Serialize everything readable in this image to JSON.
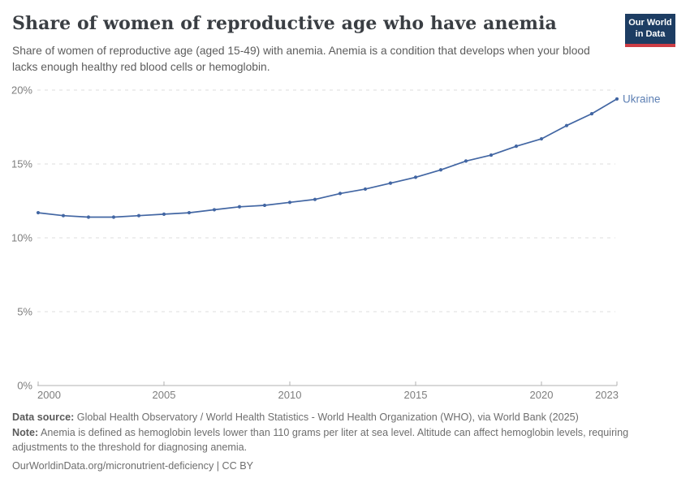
{
  "header": {
    "title": "Share of women of reproductive age who have anemia",
    "subtitle": "Share of women of reproductive age (aged 15-49) with anemia. Anemia is a condition that develops when your blood lacks enough healthy red blood cells or hemoglobin.",
    "logo": {
      "line1": "Our World",
      "line2": "in Data"
    }
  },
  "chart_data": {
    "type": "line",
    "title": "Share of women of reproductive age who have anemia",
    "entity": "Ukraine",
    "unit": "%",
    "x": [
      2000,
      2001,
      2002,
      2003,
      2004,
      2005,
      2006,
      2007,
      2008,
      2009,
      2010,
      2011,
      2012,
      2013,
      2014,
      2015,
      2016,
      2017,
      2018,
      2019,
      2020,
      2021,
      2022,
      2023
    ],
    "values": [
      11.7,
      11.5,
      11.4,
      11.4,
      11.5,
      11.6,
      11.7,
      11.9,
      12.1,
      12.2,
      12.4,
      12.6,
      13.0,
      13.3,
      13.7,
      14.1,
      14.6,
      15.2,
      15.6,
      16.2,
      16.7,
      17.6,
      18.4,
      19.4
    ],
    "ylim": [
      0,
      20
    ],
    "y_ticks": [
      {
        "label": "0%",
        "value": 0
      },
      {
        "label": "5%",
        "value": 5
      },
      {
        "label": "10%",
        "value": 10
      },
      {
        "label": "15%",
        "value": 15
      },
      {
        "label": "20%",
        "value": 20
      }
    ],
    "x_ticks": [
      {
        "label": "2000",
        "year": 2000
      },
      {
        "label": "2005",
        "year": 2005
      },
      {
        "label": "2010",
        "year": 2010
      },
      {
        "label": "2015",
        "year": 2015
      },
      {
        "label": "2020",
        "year": 2020
      },
      {
        "label": "2023",
        "year": 2023
      }
    ],
    "grid": "horizontal-dashed",
    "legend_position": "end-of-line-label"
  },
  "footer": {
    "data_source_label": "Data source:",
    "data_source": "Global Health Observatory / World Health Statistics - World Health Organization (WHO), via World Bank (2025)",
    "note_label": "Note:",
    "note": "Anemia is defined as hemoglobin levels lower than 110 grams per liter at sea level. Altitude can affect hemoglobin levels, requiring adjustments to the threshold for diagnosing anemia.",
    "url": "OurWorldinData.org/micronutrient-deficiency | CC BY"
  },
  "colors": {
    "line": "#4266a3",
    "entity_label": "#5e80b4",
    "grid": "#dcdcdc",
    "axis": "#b0b0b0",
    "tick_label": "#7e7e7e",
    "title": "#3a3e43",
    "subtitle": "#5c5c5c",
    "footer": "#6e6e6e",
    "logo_bg": "#1d3d63",
    "logo_accent": "#cd3d45"
  }
}
